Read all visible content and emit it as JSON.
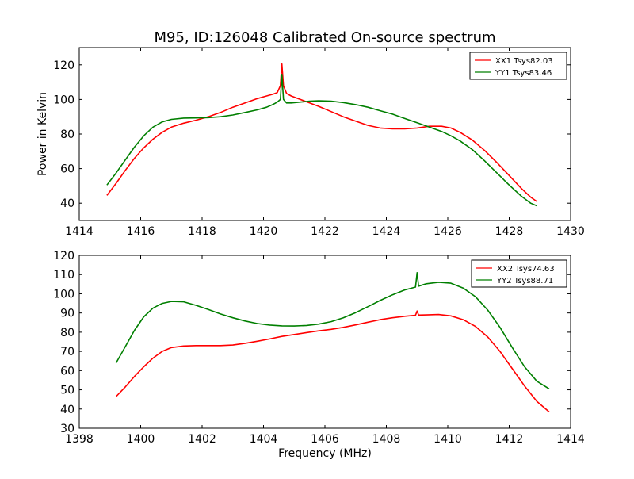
{
  "title": "M95, ID:126048 Calibrated On-source spectrum",
  "colors": {
    "XX": "#ff0000",
    "YY": "#007f00"
  },
  "chart_data": [
    {
      "type": "line",
      "title": "M95, ID:126048 Calibrated On-source spectrum",
      "xlabel": "",
      "ylabel": "Power in Kelvin",
      "xlim": [
        1414,
        1430
      ],
      "ylim": [
        30,
        130
      ],
      "xticks": [
        1414,
        1416,
        1418,
        1420,
        1422,
        1424,
        1426,
        1428,
        1430
      ],
      "yticks": [
        40,
        60,
        80,
        100,
        120
      ],
      "grid": false,
      "legend_position": "top-right",
      "series": [
        {
          "name": "XX1 Tsys82.03",
          "color": "#ff0000",
          "x": [
            1414.9,
            1415.2,
            1415.5,
            1415.8,
            1416.1,
            1416.4,
            1416.7,
            1417.0,
            1417.4,
            1417.8,
            1418.2,
            1418.6,
            1419.0,
            1419.4,
            1419.8,
            1420.1,
            1420.3,
            1420.45,
            1420.55,
            1420.6,
            1420.65,
            1420.75,
            1420.9,
            1421.2,
            1421.5,
            1421.8,
            1422.2,
            1422.6,
            1423.0,
            1423.4,
            1423.8,
            1424.2,
            1424.6,
            1425.0,
            1425.4,
            1425.8,
            1426.1,
            1426.4,
            1426.8,
            1427.2,
            1427.6,
            1428.0,
            1428.4,
            1428.7,
            1428.9
          ],
          "y": [
            44.5,
            51.5,
            59,
            66,
            72,
            77,
            81,
            84,
            86.3,
            88,
            90,
            92.5,
            95.5,
            98,
            100.5,
            102,
            103,
            104,
            108,
            120.5,
            108,
            103.5,
            102,
            100,
            98,
            96,
            93,
            90,
            87.5,
            85,
            83.5,
            83,
            83,
            83.5,
            84.5,
            84.5,
            83.5,
            81,
            76.5,
            70.5,
            63.5,
            56,
            48.5,
            43.5,
            41
          ]
        },
        {
          "name": "YY1 Tsys83.46",
          "color": "#007f00",
          "x": [
            1414.9,
            1415.2,
            1415.5,
            1415.8,
            1416.1,
            1416.4,
            1416.7,
            1417.0,
            1417.4,
            1417.8,
            1418.2,
            1418.6,
            1419.0,
            1419.4,
            1419.8,
            1420.1,
            1420.3,
            1420.45,
            1420.55,
            1420.6,
            1420.65,
            1420.75,
            1420.9,
            1421.2,
            1421.5,
            1421.8,
            1422.2,
            1422.6,
            1423.0,
            1423.4,
            1423.8,
            1424.2,
            1424.6,
            1425.0,
            1425.4,
            1425.8,
            1426.1,
            1426.4,
            1426.8,
            1427.2,
            1427.6,
            1428.0,
            1428.4,
            1428.7,
            1428.9
          ],
          "y": [
            50.5,
            57.5,
            65,
            72.5,
            79,
            84,
            87,
            88.5,
            89.2,
            89.3,
            89.5,
            90,
            91,
            92.5,
            94,
            95.5,
            97,
            98.5,
            100,
            114.5,
            100,
            98,
            98,
            98.5,
            99,
            99.2,
            99,
            98.2,
            97,
            95.5,
            93.5,
            91.5,
            89,
            86.5,
            84,
            81.5,
            79,
            76,
            71,
            64.5,
            57.5,
            50.5,
            44,
            40,
            38.5
          ]
        }
      ]
    },
    {
      "type": "line",
      "title": "",
      "xlabel": "Frequency (MHz)",
      "ylabel": "",
      "xlim": [
        1398,
        1414
      ],
      "ylim": [
        30,
        120
      ],
      "xticks": [
        1398,
        1400,
        1402,
        1404,
        1406,
        1408,
        1410,
        1412,
        1414
      ],
      "yticks": [
        30,
        40,
        50,
        60,
        70,
        80,
        90,
        100,
        110,
        120
      ],
      "grid": false,
      "legend_position": "top-right",
      "series": [
        {
          "name": "XX2 Tsys74.63",
          "color": "#ff0000",
          "x": [
            1399.2,
            1399.5,
            1399.8,
            1400.1,
            1400.4,
            1400.7,
            1401.0,
            1401.4,
            1401.8,
            1402.2,
            1402.6,
            1403.0,
            1403.4,
            1403.8,
            1404.2,
            1404.6,
            1405.0,
            1405.4,
            1405.8,
            1406.2,
            1406.6,
            1407.0,
            1407.4,
            1407.8,
            1408.2,
            1408.6,
            1408.95,
            1409.0,
            1409.05,
            1409.3,
            1409.7,
            1410.1,
            1410.5,
            1410.9,
            1411.3,
            1411.7,
            1412.1,
            1412.5,
            1412.9,
            1413.3
          ],
          "y": [
            46.5,
            51.5,
            57,
            62,
            66.5,
            70,
            72,
            72.8,
            73,
            73,
            73,
            73.3,
            74.2,
            75.3,
            76.5,
            77.8,
            78.8,
            79.8,
            80.7,
            81.5,
            82.5,
            83.8,
            85.2,
            86.5,
            87.5,
            88.3,
            88.8,
            91,
            88.9,
            89,
            89.2,
            88.5,
            86.5,
            83,
            77.5,
            70,
            61,
            52,
            44,
            38.5
          ]
        },
        {
          "name": "YY2 Tsys88.71",
          "color": "#007f00",
          "x": [
            1399.2,
            1399.5,
            1399.8,
            1400.1,
            1400.4,
            1400.7,
            1401.0,
            1401.4,
            1401.8,
            1402.2,
            1402.6,
            1403.0,
            1403.4,
            1403.8,
            1404.2,
            1404.6,
            1405.0,
            1405.4,
            1405.8,
            1406.2,
            1406.6,
            1407.0,
            1407.4,
            1407.8,
            1408.2,
            1408.6,
            1408.95,
            1409.0,
            1409.05,
            1409.3,
            1409.7,
            1410.1,
            1410.5,
            1410.9,
            1411.3,
            1411.7,
            1412.1,
            1412.5,
            1412.9,
            1413.3
          ],
          "y": [
            64,
            72.5,
            81,
            88,
            92.5,
            95,
            96,
            95.8,
            94,
            91.8,
            89.5,
            87.5,
            85.8,
            84.5,
            83.7,
            83.3,
            83.2,
            83.5,
            84.2,
            85.5,
            87.5,
            90.2,
            93.3,
            96.5,
            99.5,
            102,
            103.5,
            111,
            104,
            105.2,
            106,
            105.5,
            103,
            98.5,
            91.5,
            82.5,
            72,
            62,
            54.5,
            50.5
          ]
        }
      ]
    }
  ]
}
